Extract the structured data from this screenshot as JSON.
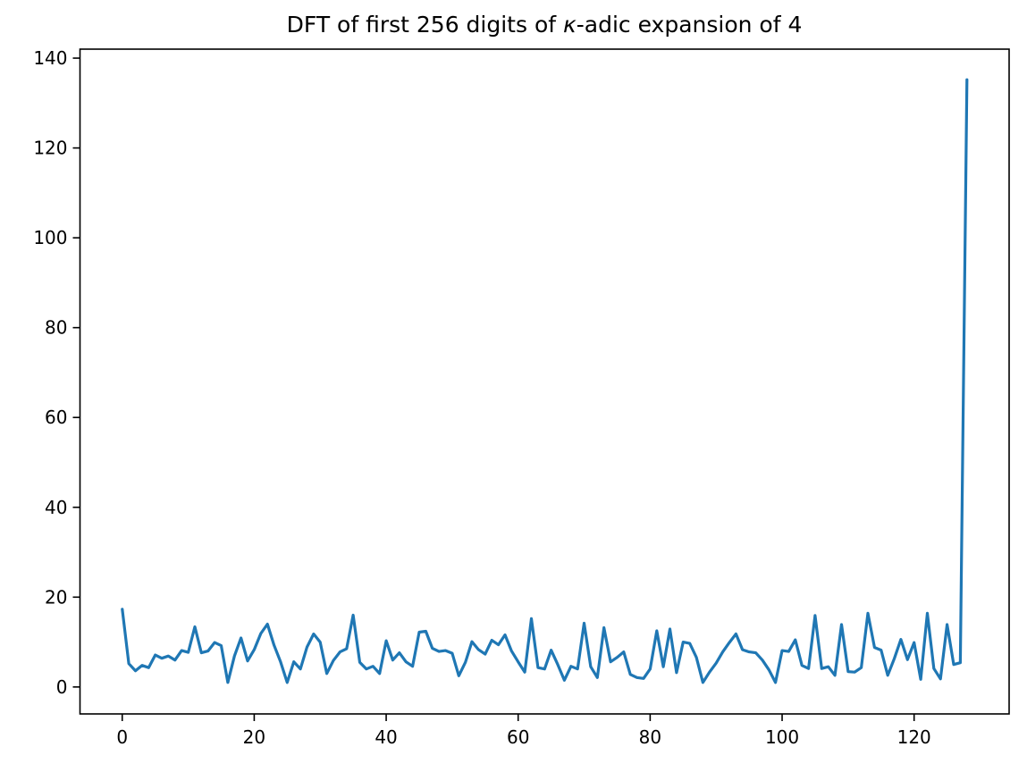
{
  "figure": {
    "title_prefix": "DFT of first 256 digits of ",
    "title_italic": "κ",
    "title_suffix": "-adic expansion of 4",
    "background_color": "#ffffff",
    "line_color": "#1f77b4",
    "axis_color": "#000000"
  },
  "chart_data": {
    "type": "line",
    "title": "DFT of first 256 digits of κ-adic expansion of 4",
    "xlabel": "",
    "ylabel": "",
    "grid": false,
    "legend": null,
    "x_ticks": [
      0,
      20,
      40,
      60,
      80,
      100,
      120
    ],
    "y_ticks": [
      0,
      20,
      40,
      60,
      80,
      100,
      120,
      140
    ],
    "xlim": [
      -6.4,
      134.4
    ],
    "ylim": [
      -6.0,
      142.0
    ],
    "x_start": 0,
    "x_step": 1,
    "values": [
      17.3,
      5.2,
      3.6,
      4.8,
      4.3,
      7.1,
      6.4,
      6.9,
      6.0,
      8.1,
      7.7,
      13.4,
      7.6,
      8.0,
      9.9,
      9.2,
      1.0,
      6.9,
      10.9,
      5.8,
      8.3,
      11.9,
      14.0,
      9.3,
      5.6,
      1.0,
      5.6,
      4.0,
      8.9,
      11.8,
      10.0,
      3.0,
      5.9,
      7.8,
      8.5,
      16.0,
      5.5,
      4.0,
      4.6,
      3.0,
      10.3,
      6.0,
      7.6,
      5.6,
      4.6,
      12.2,
      12.4,
      8.6,
      7.9,
      8.1,
      7.5,
      2.5,
      5.5,
      10.1,
      8.3,
      7.3,
      10.4,
      9.4,
      11.6,
      8.0,
      5.6,
      3.3,
      15.2,
      4.3,
      4.0,
      8.2,
      5.0,
      1.5,
      4.6,
      4.0,
      14.2,
      4.5,
      2.1,
      13.2,
      5.6,
      6.6,
      7.8,
      2.8,
      2.1,
      1.9,
      4.0,
      12.5,
      4.5,
      12.9,
      3.2,
      10.0,
      9.7,
      6.6,
      1.0,
      3.3,
      5.3,
      7.8,
      9.9,
      11.8,
      8.3,
      7.8,
      7.6,
      6.0,
      3.8,
      1.0,
      8.1,
      7.9,
      10.5,
      4.8,
      4.1,
      15.9,
      4.1,
      4.5,
      2.6,
      13.9,
      3.4,
      3.3,
      4.3,
      16.4,
      8.8,
      8.2,
      2.6,
      6.3,
      10.6,
      6.1,
      9.9,
      1.7,
      16.4,
      4.1,
      1.8,
      13.9,
      5.0,
      5.4,
      135.2
    ]
  }
}
